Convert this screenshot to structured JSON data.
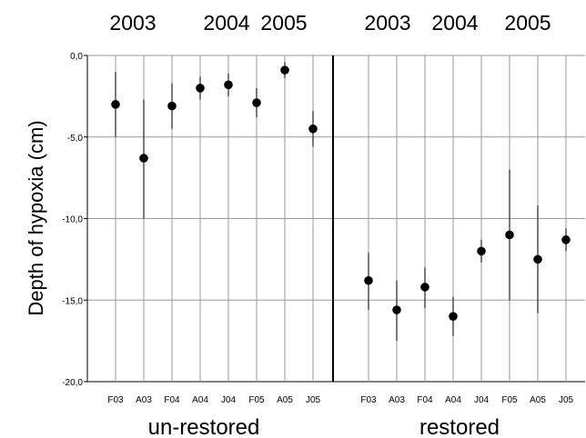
{
  "chart_data": {
    "type": "scatter",
    "ylabel": "Depth of hypoxia (cm)",
    "ylim": [
      -20,
      0
    ],
    "yticks": [
      {
        "value": 0,
        "label": "0,0"
      },
      {
        "value": -5,
        "label": "-5,0"
      },
      {
        "value": -10,
        "label": "-10,0"
      },
      {
        "value": -15,
        "label": "-15,0"
      },
      {
        "value": -20,
        "label": "-20,0"
      }
    ],
    "grid": true,
    "colors": {
      "marker": "#000000",
      "grid": "#999999",
      "errorbar": "#333333"
    },
    "panels": [
      {
        "group_label": "un-restored",
        "year_labels": [
          "2003",
          "2004",
          "2005"
        ],
        "categories": [
          "F03",
          "A03",
          "F04",
          "A04",
          "J04",
          "F05",
          "A05",
          "J05"
        ],
        "values": [
          -3.0,
          -6.3,
          -3.1,
          -2.0,
          -1.8,
          -2.9,
          -0.9,
          -4.5
        ],
        "err_low": [
          -5.0,
          -10.0,
          -4.5,
          -2.7,
          -2.5,
          -3.8,
          -1.4,
          -5.6
        ],
        "err_high": [
          -1.0,
          -2.7,
          -1.7,
          -1.3,
          -1.1,
          -2.0,
          -0.4,
          -3.4
        ]
      },
      {
        "group_label": "restored",
        "year_labels": [
          "2003",
          "2004",
          "2005"
        ],
        "categories": [
          "F03",
          "A03",
          "F04",
          "A04",
          "J04",
          "F05",
          "A05",
          "J05"
        ],
        "values": [
          -13.8,
          -15.6,
          -14.2,
          -16.0,
          -12.0,
          -11.0,
          -12.5,
          -11.3
        ],
        "err_low": [
          -15.6,
          -17.5,
          -15.5,
          -17.2,
          -12.7,
          -15.0,
          -15.8,
          -12.0
        ],
        "err_high": [
          -12.1,
          -13.8,
          -13.0,
          -14.8,
          -11.3,
          -7.0,
          -9.2,
          -10.6
        ]
      }
    ]
  }
}
